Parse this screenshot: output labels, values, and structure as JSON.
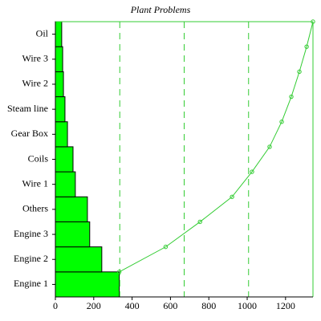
{
  "chart_data": {
    "type": "pareto",
    "title": "Plant Problems",
    "categories": [
      "Engine 1",
      "Engine 2",
      "Engine 3",
      "Others",
      "Wire 1",
      "Coils",
      "Gear Box",
      "Steam line",
      "Wire 2",
      "Wire 3",
      "Oil"
    ],
    "values": [
      333,
      242,
      179,
      167,
      104,
      92,
      63,
      50,
      42,
      38,
      33
    ],
    "color": "#00ff00",
    "line_color": "#33cc33",
    "xlim": [
      0,
      1343
    ],
    "xticks": [
      0,
      200,
      400,
      600,
      800,
      1000,
      1200
    ]
  }
}
